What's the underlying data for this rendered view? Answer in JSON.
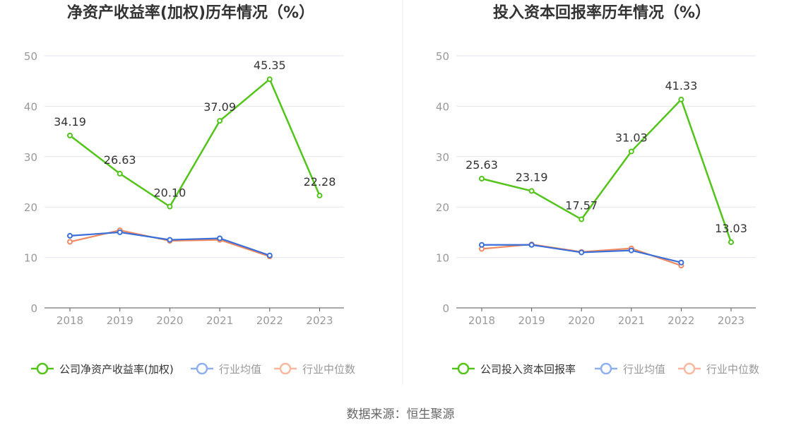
{
  "colors": {
    "company": "#52c41a",
    "industry_avg": "#3a6fd8",
    "industry_median": "#f08860",
    "legend_avg": "#8fb0f0",
    "legend_median": "#f8b8a0",
    "grid": "#e3e6ee",
    "axis": "#555555",
    "tick_text": "#999999",
    "label_text": "#333333",
    "title_text": "#333333"
  },
  "source_text": "数据来源：恒生聚源",
  "chart_data": [
    {
      "type": "line",
      "title": "净资产收益率(加权)历年情况（%）",
      "categories": [
        "2018",
        "2019",
        "2020",
        "2021",
        "2022",
        "2023"
      ],
      "ylim": [
        0,
        50
      ],
      "yticks": [
        "0",
        "10",
        "20",
        "30",
        "40",
        "50"
      ],
      "series": [
        {
          "name": "公司净资产收益率(加权)",
          "values": [
            34.19,
            26.63,
            20.1,
            37.09,
            45.35,
            22.28
          ],
          "labels": [
            "34.19",
            "26.63",
            "20.10",
            "37.09",
            "45.35",
            "22.28"
          ]
        },
        {
          "name": "行业均值",
          "values": [
            14.3,
            15.0,
            13.5,
            13.8,
            10.4,
            null
          ]
        },
        {
          "name": "行业中位数",
          "values": [
            13.1,
            15.4,
            13.3,
            13.5,
            10.2,
            null
          ]
        }
      ],
      "legend": [
        "公司净资产收益率(加权)",
        "行业均值",
        "行业中位数"
      ]
    },
    {
      "type": "line",
      "title": "投入资本回报率历年情况（%）",
      "categories": [
        "2018",
        "2019",
        "2020",
        "2021",
        "2022",
        "2023"
      ],
      "ylim": [
        0,
        50
      ],
      "yticks": [
        "0",
        "10",
        "20",
        "30",
        "40",
        "50"
      ],
      "series": [
        {
          "name": "公司投入资本回报率",
          "values": [
            25.63,
            23.19,
            17.57,
            31.03,
            41.33,
            13.03
          ],
          "labels": [
            "25.63",
            "23.19",
            "17.57",
            "31.03",
            "41.33",
            "13.03"
          ]
        },
        {
          "name": "行业均值",
          "values": [
            12.5,
            12.5,
            11.0,
            11.4,
            9.0,
            null
          ]
        },
        {
          "name": "行业中位数",
          "values": [
            11.7,
            12.6,
            11.1,
            11.8,
            8.4,
            null
          ]
        }
      ],
      "legend": [
        "公司投入资本回报率",
        "行业均值",
        "行业中位数"
      ]
    }
  ]
}
